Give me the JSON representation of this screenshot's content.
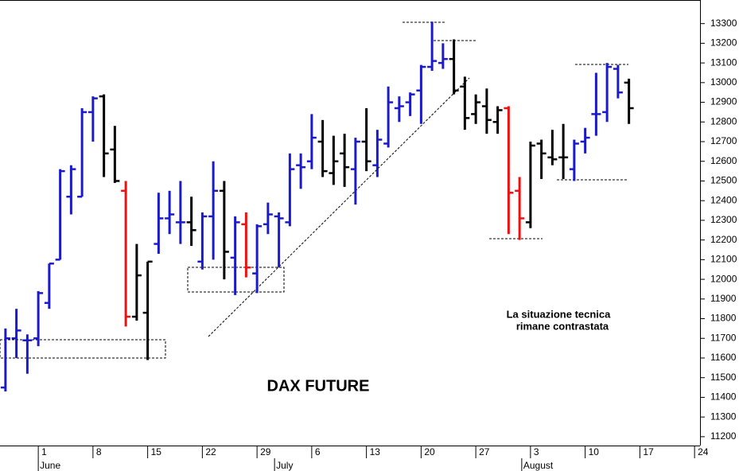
{
  "chart_data": {
    "type": "ohlc",
    "title": "DAX FUTURE",
    "annotations": [
      "La situazione tecnica",
      "rimane contrastata"
    ],
    "x": [
      -3,
      -2,
      -1,
      0,
      1,
      2,
      3,
      4,
      5,
      6,
      7,
      8,
      9,
      10,
      11,
      12,
      13,
      14,
      15,
      16,
      17,
      18,
      19,
      20,
      21,
      22,
      23,
      24,
      25,
      26,
      27,
      28,
      29,
      30,
      31,
      32,
      33,
      34,
      35,
      36,
      37,
      38,
      39,
      40,
      41,
      42,
      43,
      44,
      45,
      46,
      47,
      48,
      49,
      50,
      51,
      52,
      53,
      54
    ],
    "open": [
      11450,
      11700,
      11690,
      11700,
      11880,
      12100,
      12420,
      12420,
      12850,
      12930,
      12660,
      12450,
      11810,
      11830,
      12180,
      12310,
      12290,
      12290,
      12090,
      12320,
      12450,
      12110,
      12280,
      12030,
      12280,
      12320,
      12290,
      12580,
      12600,
      12700,
      12540,
      12640,
      12560,
      12700,
      12580,
      12690,
      12870,
      12900,
      12960,
      13080,
      13100,
      13120,
      12980,
      12840,
      12880,
      12800,
      12870,
      12450,
      12290,
      12690,
      12620,
      12620,
      12560,
      12700,
      12840,
      12850,
      13070,
      13000
    ],
    "high": [
      11750,
      11850,
      11720,
      11940,
      12080,
      12560,
      12580,
      12870,
      12930,
      12940,
      12780,
      12500,
      12180,
      12090,
      12440,
      12450,
      12500,
      12420,
      12340,
      12600,
      12500,
      12320,
      12340,
      12280,
      12390,
      12340,
      12640,
      12640,
      12840,
      12810,
      12730,
      12740,
      12720,
      12870,
      12760,
      12980,
      12930,
      12950,
      13090,
      13310,
      13200,
      13220,
      13030,
      12940,
      12970,
      12880,
      12880,
      12520,
      12700,
      12710,
      12760,
      12790,
      12710,
      12770,
      13050,
      13100,
      13090,
      13020
    ],
    "low": [
      11430,
      11600,
      11520,
      11660,
      11850,
      12100,
      12330,
      12420,
      12700,
      12520,
      12490,
      11760,
      11790,
      11590,
      12130,
      12230,
      12180,
      12170,
      12050,
      12100,
      12000,
      11920,
      12010,
      11930,
      12230,
      12060,
      12270,
      12460,
      12560,
      12520,
      12480,
      12470,
      12380,
      12550,
      12520,
      12670,
      12800,
      12830,
      12790,
      13060,
      13070,
      12940,
      12760,
      12790,
      12740,
      12740,
      12230,
      12200,
      12260,
      12510,
      12580,
      12510,
      12500,
      12640,
      12730,
      12800,
      12920,
      12790
    ],
    "close": [
      11700,
      11740,
      11690,
      11930,
      12080,
      12550,
      12560,
      12850,
      12920,
      12640,
      12500,
      11810,
      12020,
      12090,
      12310,
      12330,
      12290,
      12250,
      12320,
      12450,
      12140,
      12290,
      12060,
      12270,
      12330,
      12310,
      12560,
      12570,
      12720,
      12550,
      12600,
      12570,
      12700,
      12600,
      12710,
      12900,
      12880,
      12940,
      13080,
      13110,
      13120,
      12960,
      12820,
      12900,
      12810,
      12860,
      12440,
      12310,
      12680,
      12640,
      12610,
      12620,
      12690,
      12720,
      12840,
      13080,
      12950,
      12870
    ],
    "colors": [
      "#1a1acc",
      "#1a1acc",
      "#1a1acc",
      "#1a1acc",
      "#1a1acc",
      "#1a1acc",
      "#1a1acc",
      "#1a1acc",
      "#1a1acc",
      "#000000",
      "#000000",
      "#ee1111",
      "#000000",
      "#000000",
      "#1a1acc",
      "#1a1acc",
      "#1a1acc",
      "#000000",
      "#1a1acc",
      "#1a1acc",
      "#000000",
      "#1a1acc",
      "#ee1111",
      "#1a1acc",
      "#1a1acc",
      "#1a1acc",
      "#1a1acc",
      "#1a1acc",
      "#1a1acc",
      "#000000",
      "#000000",
      "#000000",
      "#1a1acc",
      "#000000",
      "#1a1acc",
      "#1a1acc",
      "#1a1acc",
      "#1a1acc",
      "#1a1acc",
      "#1a1acc",
      "#1a1acc",
      "#000000",
      "#000000",
      "#000000",
      "#000000",
      "#000000",
      "#ee1111",
      "#ee1111",
      "#000000",
      "#000000",
      "#000000",
      "#000000",
      "#1a1acc",
      "#1a1acc",
      "#1a1acc",
      "#1a1acc",
      "#1a1acc",
      "#000000"
    ],
    "xlim": [
      -3.5,
      60.5
    ],
    "xticks": [
      {
        "value": 0,
        "label": "1"
      },
      {
        "value": 5,
        "label": "8"
      },
      {
        "value": 10,
        "label": "15"
      },
      {
        "value": 15,
        "label": "22"
      },
      {
        "value": 20,
        "label": "29"
      },
      {
        "value": 25,
        "label": "6"
      },
      {
        "value": 30,
        "label": "13"
      },
      {
        "value": 35,
        "label": "20"
      },
      {
        "value": 40,
        "label": "27"
      },
      {
        "value": 45,
        "label": "3"
      },
      {
        "value": 50,
        "label": "10"
      },
      {
        "value": 55,
        "label": "17"
      },
      {
        "value": 60,
        "label": "24"
      }
    ],
    "months": [
      {
        "value": 0,
        "label": "June"
      },
      {
        "value": 21.6,
        "label": "July"
      },
      {
        "value": 44.2,
        "label": "August"
      }
    ],
    "ylim": [
      11155,
      13420
    ],
    "yticks": [
      11200,
      11300,
      11400,
      11500,
      11600,
      11700,
      11800,
      11900,
      12000,
      12100,
      12200,
      12300,
      12400,
      12500,
      12600,
      12700,
      12800,
      12900,
      13000,
      13100,
      13200,
      13300
    ]
  }
}
